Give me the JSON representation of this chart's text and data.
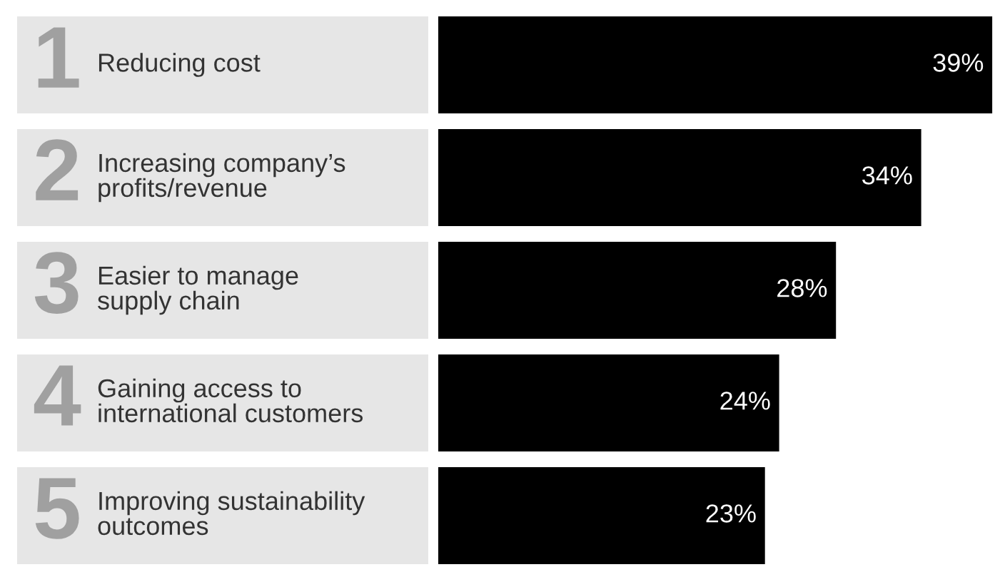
{
  "chart_data": {
    "type": "bar",
    "orientation": "horizontal",
    "categories": [
      "Reducing cost",
      "Increasing company’s\nprofits/revenue",
      "Easier to manage\nsupply chain",
      "Gaining access to\ninternational customers",
      "Improving sustainability\noutcomes"
    ],
    "values": [
      39,
      34,
      28,
      24,
      23
    ],
    "color": "#000000",
    "value_labels": [
      "39%",
      "34%",
      "28%",
      "24%",
      "23%"
    ],
    "annotations": [
      "1",
      "2",
      "3",
      "4",
      "5"
    ]
  }
}
